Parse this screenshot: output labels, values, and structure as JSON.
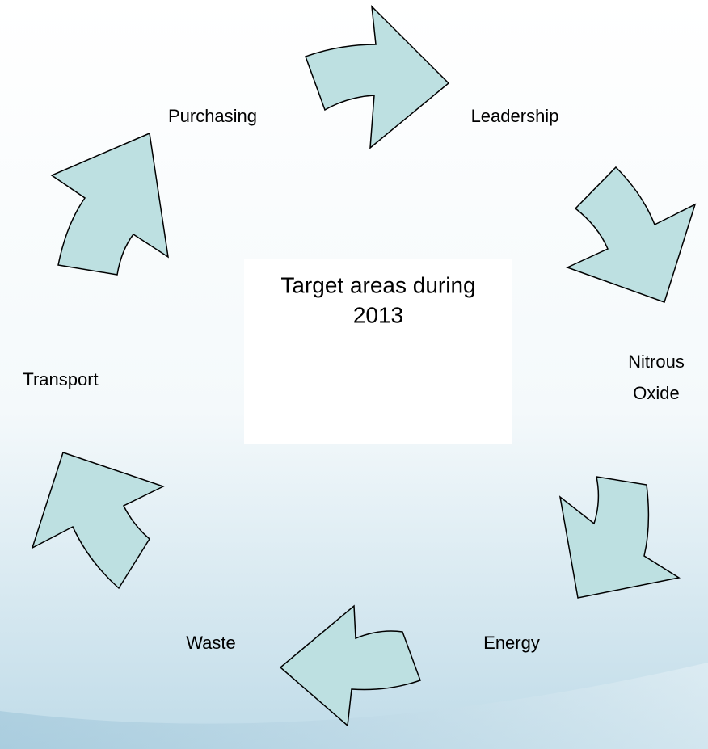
{
  "center": {
    "lines": [
      "Target areas during",
      "2013"
    ]
  },
  "nodes": [
    {
      "lines": [
        "Purchasing"
      ]
    },
    {
      "lines": [
        "Leadership"
      ]
    },
    {
      "lines": [
        "Nitrous",
        "Oxide"
      ]
    },
    {
      "lines": [
        "Energy"
      ]
    },
    {
      "lines": [
        "Waste"
      ]
    },
    {
      "lines": [
        "Transport"
      ]
    }
  ]
}
